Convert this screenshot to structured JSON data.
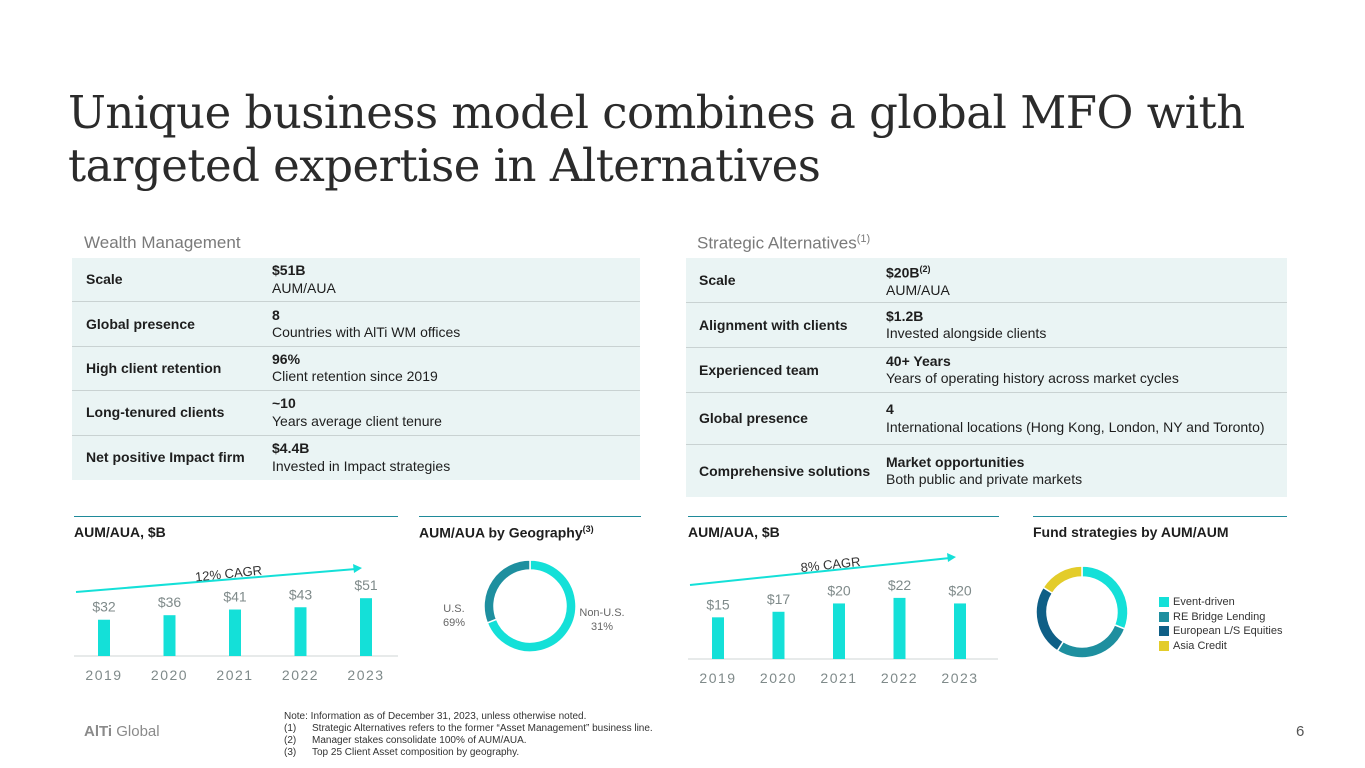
{
  "title": "Unique business model combines a global MFO with targeted expertise in Alternatives",
  "wealth_management": {
    "heading": "Wealth Management",
    "rows": [
      {
        "label": "Scale",
        "value": "$51B",
        "desc": "AUM/AUA"
      },
      {
        "label": "Global presence",
        "value": "8",
        "desc": "Countries with AlTi WM offices"
      },
      {
        "label": "High client retention",
        "value": "96%",
        "desc": "Client retention since 2019"
      },
      {
        "label": "Long-tenured clients",
        "value": "~10",
        "desc": "Years average client tenure"
      },
      {
        "label": "Net positive Impact firm",
        "value": "$4.4B",
        "desc": "Invested in Impact strategies"
      }
    ]
  },
  "strategic_alternatives": {
    "heading": "Strategic Alternatives",
    "heading_sup": "(1)",
    "rows": [
      {
        "label": "Scale",
        "value": "$20B",
        "value_sup": "(2)",
        "desc": "AUM/AUA"
      },
      {
        "label": "Alignment with clients",
        "value": "$1.2B",
        "desc": "Invested alongside clients"
      },
      {
        "label": "Experienced team",
        "value": "40+ Years",
        "desc": "Years of operating history across market cycles"
      },
      {
        "label": "Global presence",
        "value": "4",
        "desc": "International locations (Hong Kong, London, NY and Toronto)"
      },
      {
        "label": "Comprehensive solutions",
        "value": "Market opportunities",
        "desc": "Both public and private markets"
      }
    ]
  },
  "panels": {
    "wm_aum_title": "AUM/AUA, $B",
    "wm_geo_title": "AUM/AUA by Geography",
    "wm_geo_sup": "(3)",
    "sa_aum_title": "AUM/AUA, $B",
    "sa_fund_title": "Fund strategies by AUM/AUM"
  },
  "colors": {
    "cyan": "#14e0d8",
    "teal": "#1e8f9f",
    "navy": "#0f5f86",
    "yellow": "#e3cc2a",
    "rule": "#1f8a9a"
  },
  "chart_data": [
    {
      "type": "bar",
      "title": "AUM/AUA, $B",
      "categories": [
        "2019",
        "2020",
        "2021",
        "2022",
        "2023"
      ],
      "values": [
        32,
        36,
        41,
        43,
        51
      ],
      "value_labels": [
        "$32",
        "$36",
        "$41",
        "$43",
        "$51"
      ],
      "annotation": "12% CAGR",
      "ylim": [
        0,
        60
      ]
    },
    {
      "type": "pie",
      "title": "AUM/AUA by Geography",
      "labels": [
        "U.S.",
        "Non-U.S."
      ],
      "values": [
        69,
        31
      ],
      "value_labels": [
        "69%",
        "31%"
      ],
      "colors": [
        "#14e0d8",
        "#1e8f9f"
      ]
    },
    {
      "type": "bar",
      "title": "AUM/AUA, $B",
      "categories": [
        "2019",
        "2020",
        "2021",
        "2022",
        "2023"
      ],
      "values": [
        15,
        17,
        20,
        22,
        20
      ],
      "value_labels": [
        "$15",
        "$17",
        "$20",
        "$22",
        "$20"
      ],
      "annotation": "8% CAGR",
      "ylim": [
        0,
        27
      ]
    },
    {
      "type": "pie",
      "title": "Fund strategies by AUM/AUM",
      "labels": [
        "Event-driven",
        "RE Bridge Lending",
        "European L/S Equities",
        "Asia Credit"
      ],
      "values": [
        31,
        28,
        25,
        16
      ],
      "colors": [
        "#14e0d8",
        "#1e8f9f",
        "#0f5f86",
        "#e3cc2a"
      ]
    }
  ],
  "footer": {
    "logo_bold": "AlTi",
    "logo_rest": " Global",
    "page_number": "6",
    "notes": [
      {
        "num": "",
        "text": "Note: Information as of December 31, 2023, unless otherwise noted."
      },
      {
        "num": "(1)",
        "text": "Strategic Alternatives refers to the former “Asset Management” business line."
      },
      {
        "num": "(2)",
        "text": "Manager stakes consolidate 100% of AUM/AUA."
      },
      {
        "num": "(3)",
        "text": "Top 25 Client Asset composition by geography."
      }
    ]
  }
}
